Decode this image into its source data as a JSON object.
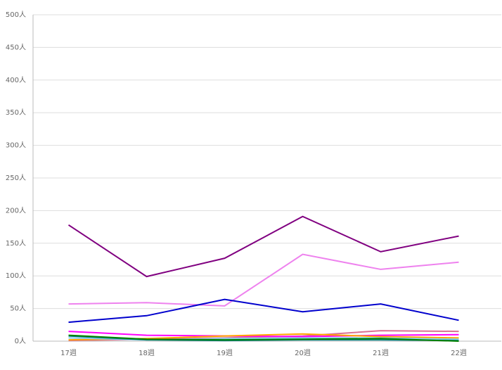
{
  "chart_data": {
    "type": "line",
    "categories": [
      "17週",
      "18週",
      "19週",
      "20週",
      "21週",
      "22週"
    ],
    "series": [
      {
        "color": "#800080",
        "values": [
          178,
          99,
          127,
          191,
          137,
          161
        ]
      },
      {
        "color": "#ee82ee",
        "values": [
          57,
          59,
          54,
          133,
          110,
          121
        ]
      },
      {
        "color": "#0000cd",
        "values": [
          29,
          39,
          64,
          45,
          57,
          32
        ]
      },
      {
        "color": "#db7093",
        "values": [
          1,
          3,
          5,
          8,
          16,
          15
        ]
      },
      {
        "color": "#ff00ff",
        "values": [
          15,
          9,
          8,
          7,
          9,
          10
        ]
      },
      {
        "color": "#ffa500",
        "values": [
          2,
          4,
          8,
          11,
          7,
          5
        ]
      },
      {
        "color": "#87ceeb",
        "values": [
          5,
          2,
          4,
          5,
          5,
          3
        ]
      },
      {
        "color": "#008080",
        "values": [
          8,
          2,
          1,
          2,
          2,
          1
        ]
      },
      {
        "color": "#008000",
        "values": [
          9,
          3,
          2,
          3,
          4,
          0
        ]
      }
    ],
    "ylim": [
      0,
      500
    ],
    "yticks": [
      {
        "value": 0,
        "label": "0人"
      },
      {
        "value": 50,
        "label": "50人"
      },
      {
        "value": 100,
        "label": "100人"
      },
      {
        "value": 150,
        "label": "150人"
      },
      {
        "value": 200,
        "label": "200人"
      },
      {
        "value": 250,
        "label": "250人"
      },
      {
        "value": 300,
        "label": "300人"
      },
      {
        "value": 350,
        "label": "350人"
      },
      {
        "value": 400,
        "label": "400人"
      },
      {
        "value": 450,
        "label": "450人"
      },
      {
        "value": 500,
        "label": "500人"
      }
    ],
    "grid": true
  }
}
